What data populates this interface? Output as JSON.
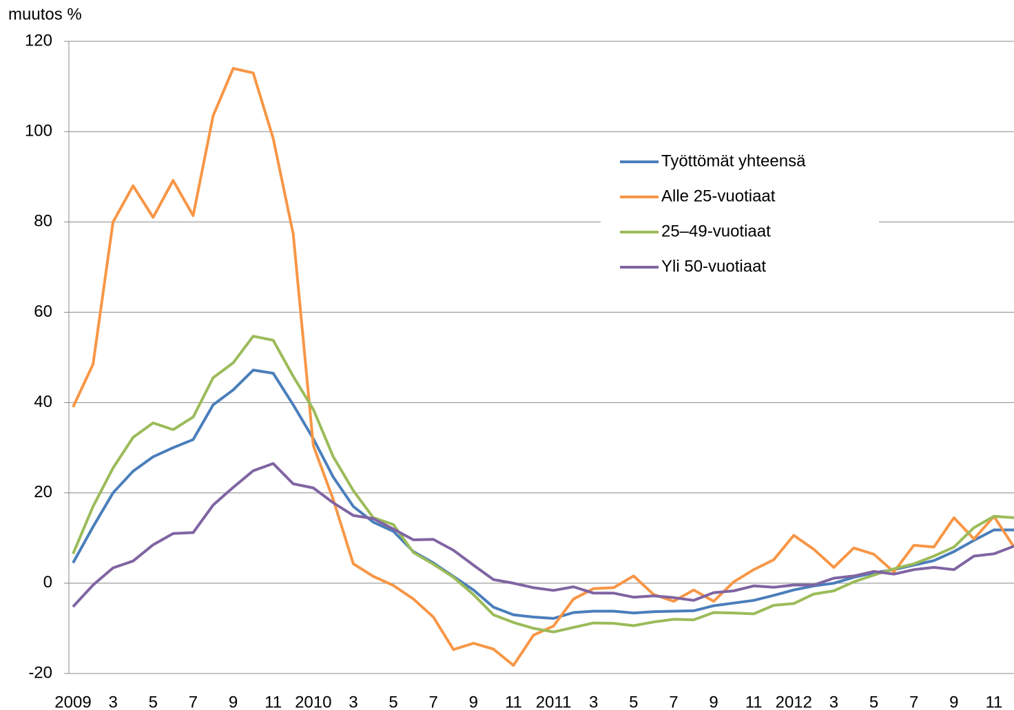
{
  "chart_data": {
    "type": "line",
    "y_label": "muutos %",
    "categories": [
      "2009",
      null,
      "3",
      null,
      "5",
      null,
      "7",
      null,
      "9",
      null,
      "11",
      null,
      "2010",
      null,
      "3",
      null,
      "5",
      null,
      "7",
      null,
      "9",
      null,
      "11",
      null,
      "2011",
      null,
      "3",
      null,
      "5",
      null,
      "7",
      null,
      "9",
      null,
      "11",
      null,
      "2012",
      null,
      "3",
      null,
      "5",
      null,
      "7",
      null,
      "9",
      null,
      "11",
      null
    ],
    "series": [
      {
        "name": "Työttömät yhteensä",
        "color": "#4a7ebb",
        "values": [
          4.5,
          12.5,
          20,
          24.8,
          28,
          30,
          31.8,
          39.5,
          42.8,
          47.2,
          46.5,
          39.5,
          32,
          23.5,
          17,
          13.5,
          11.5,
          7,
          4.5,
          1.5,
          -1.5,
          -5.3,
          -7,
          -7.5,
          -7.8,
          -6.5,
          -6.2,
          -6.2,
          -6.6,
          -6.3,
          -6.2,
          -6.1,
          -5,
          -4.4,
          -3.8,
          -2.7,
          -1.5,
          -0.6,
          0,
          1.3,
          2.3,
          3,
          4,
          5,
          7,
          9.5,
          11.8,
          11.8
        ]
      },
      {
        "name": "Alle 25-vuotiaat",
        "color": "#f79646",
        "values": [
          39,
          48.5,
          80,
          88,
          81,
          89.2,
          81.4,
          103.5,
          114,
          113,
          98.5,
          77.3,
          30.5,
          18.5,
          4.3,
          1.5,
          -0.5,
          -3.5,
          -7.5,
          -14.7,
          -13.3,
          -14.6,
          -18.2,
          -11.5,
          -9.5,
          -3.5,
          -1.2,
          -1,
          1.6,
          -2.5,
          -4,
          -1.5,
          -4,
          0.3,
          3,
          5.2,
          10.6,
          7.5,
          3.5,
          7.8,
          6.4,
          2.5,
          8.4,
          8,
          14.5,
          9.8,
          14.8,
          8
        ]
      },
      {
        "name": "25–49-vuotiaat",
        "color": "#9bbb59",
        "values": [
          6.5,
          17,
          25.5,
          32.3,
          35.5,
          34,
          36.8,
          45.5,
          48.8,
          54.7,
          53.8,
          45.8,
          38.5,
          28,
          20.5,
          14.5,
          13,
          6.8,
          4.2,
          1.3,
          -2.5,
          -7,
          -8.7,
          -10,
          -10.8,
          -9.8,
          -8.8,
          -8.9,
          -9.4,
          -8.6,
          -8,
          -8.1,
          -6.5,
          -6.6,
          -6.8,
          -4.9,
          -4.5,
          -2.4,
          -1.7,
          0.3,
          1.8,
          3.2,
          4.3,
          6,
          8,
          12.3,
          14.8,
          14.5
        ]
      },
      {
        "name": "Yli 50-vuotiaat",
        "color": "#8064a2",
        "values": [
          -5.2,
          -0.4,
          3.4,
          4.9,
          8.5,
          11,
          11.2,
          17.3,
          21.2,
          24.9,
          26.5,
          22,
          21.1,
          17.8,
          15,
          14.3,
          12,
          9.6,
          9.7,
          7.3,
          4,
          0.8,
          0,
          -1,
          -1.6,
          -0.8,
          -2.2,
          -2.2,
          -3.1,
          -2.8,
          -3.2,
          -3.8,
          -2.1,
          -1.7,
          -0.6,
          -0.9,
          -0.4,
          -0.4,
          1.1,
          1.6,
          2.6,
          2,
          3,
          3.5,
          3,
          6,
          6.5,
          8.2
        ]
      }
    ],
    "ylim": [
      -20,
      120
    ],
    "yticks": [
      -20,
      0,
      20,
      40,
      60,
      80,
      100,
      120
    ],
    "grid": true,
    "legend": "upper right"
  }
}
